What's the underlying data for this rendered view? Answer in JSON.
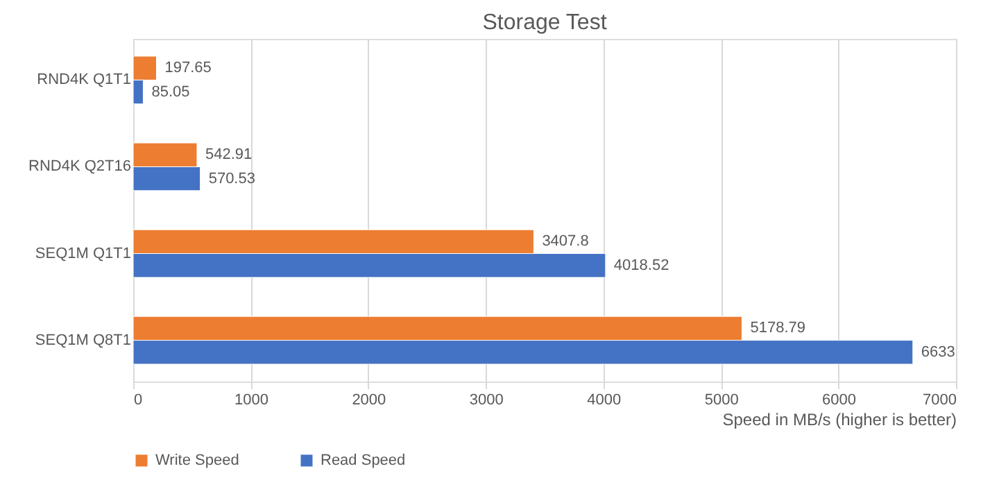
{
  "chart_data": {
    "type": "bar",
    "orientation": "horizontal",
    "title": "Storage Test",
    "xlabel": "Speed in MB/s (higher is better)",
    "categories": [
      "RND4K Q1T1",
      "RND4K Q2T16",
      "SEQ1M Q1T1",
      "SEQ1M Q8T1"
    ],
    "series": [
      {
        "name": "Write Speed",
        "color": "#ed7d31",
        "values": [
          197.65,
          542.91,
          3407.8,
          5178.79
        ]
      },
      {
        "name": "Read Speed",
        "color": "#4472c4",
        "values": [
          85.05,
          570.53,
          4018.52,
          6633
        ]
      }
    ],
    "xlim": [
      0,
      7000
    ],
    "xticks": [
      0,
      1000,
      2000,
      3000,
      4000,
      5000,
      6000,
      7000
    ],
    "grid": "x",
    "legend": "bottom left",
    "data_labels": true
  }
}
